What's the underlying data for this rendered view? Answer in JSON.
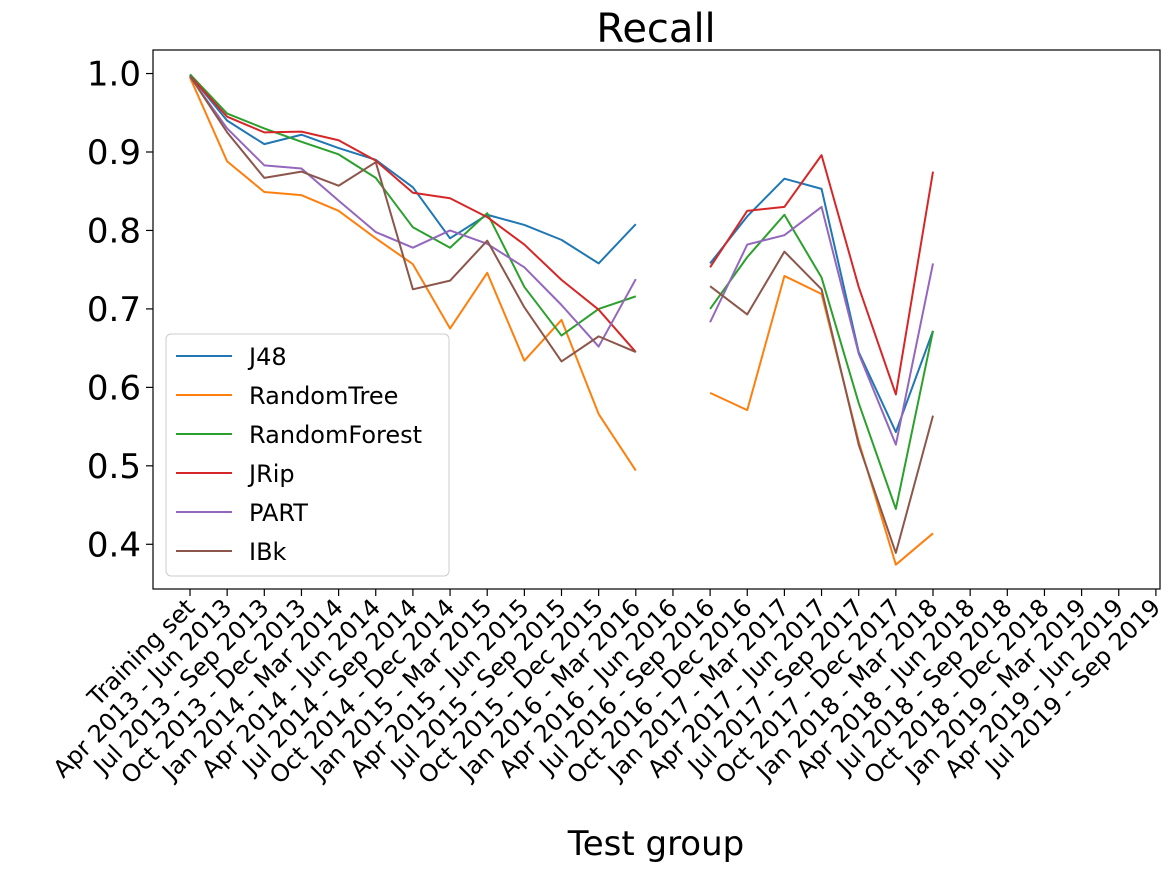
{
  "chart_data": {
    "type": "line",
    "title": "Recall",
    "xlabel": "Test group",
    "ylabel": "",
    "ylim": [
      0.343,
      1.03
    ],
    "yticks": [
      0.4,
      0.5,
      0.6,
      0.7,
      0.8,
      0.9,
      1.0
    ],
    "ytick_labels": [
      "0.4",
      "0.5",
      "0.6",
      "0.7",
      "0.8",
      "0.9",
      "1.0"
    ],
    "grid": false,
    "legend_position": "lower-left",
    "categories": [
      "Training set",
      "Apr 2013 - Jun 2013",
      "Jul 2013 - Sep 2013",
      "Oct 2013 - Dec 2013",
      "Jan 2014 - Mar 2014",
      "Apr 2014 - Jun 2014",
      "Jul 2014 - Sep 2014",
      "Oct 2014 - Dec 2014",
      "Jan 2015 - Mar 2015",
      "Apr 2015 - Jun 2015",
      "Jul 2015 - Sep 2015",
      "Oct 2015 - Dec 2015",
      "Jan 2016 - Mar 2016",
      "Apr 2016 - Jun 2016",
      "Jul 2016 - Sep 2016",
      "Oct 2016 - Dec 2016",
      "Jan 2017 - Mar 2017",
      "Apr 2017 - Jun 2017",
      "Jul 2017 - Sep 2017",
      "Oct 2017 - Dec 2017",
      "Jan 2018 - Mar 2018",
      "Apr 2018 - Jun 2018",
      "Jul 2018 - Sep 2018",
      "Oct 2018 - Dec 2018",
      "Jan 2019 - Mar 2019",
      "Apr 2019 - Jun 2019",
      "Jul 2019 - Sep 2019"
    ],
    "series": [
      {
        "name": "J48",
        "color": "#1f77b4",
        "values": [
          0.998,
          0.94,
          0.91,
          0.922,
          0.905,
          0.89,
          0.855,
          0.79,
          0.82,
          0.807,
          0.788,
          0.758,
          0.808,
          null,
          0.758,
          0.818,
          0.866,
          0.853,
          0.645,
          0.543,
          0.672,
          null,
          null,
          null,
          null,
          null,
          null
        ]
      },
      {
        "name": "RandomTree",
        "color": "#ff7f0e",
        "values": [
          0.995,
          0.888,
          0.849,
          0.845,
          0.825,
          0.79,
          0.757,
          0.675,
          0.746,
          0.634,
          0.686,
          0.566,
          0.494,
          null,
          0.593,
          0.571,
          0.742,
          0.719,
          0.531,
          0.374,
          0.414,
          null,
          null,
          null,
          null,
          null,
          null
        ]
      },
      {
        "name": "RandomForest",
        "color": "#2ca02c",
        "values": [
          0.999,
          0.949,
          0.93,
          0.913,
          0.897,
          0.867,
          0.804,
          0.778,
          0.822,
          0.728,
          0.666,
          0.7,
          0.716,
          null,
          0.7,
          0.766,
          0.82,
          0.74,
          0.58,
          0.445,
          0.672,
          null,
          null,
          null,
          null,
          null,
          null
        ]
      },
      {
        "name": "JRip",
        "color": "#d62728",
        "values": [
          0.997,
          0.945,
          0.925,
          0.926,
          0.915,
          0.889,
          0.848,
          0.841,
          0.817,
          0.782,
          0.737,
          0.699,
          0.645,
          null,
          0.753,
          0.825,
          0.83,
          0.896,
          0.728,
          0.591,
          0.875,
          null,
          null,
          null,
          null,
          null,
          null
        ]
      },
      {
        "name": "PART",
        "color": "#9467bd",
        "values": [
          0.996,
          0.93,
          0.883,
          0.879,
          0.838,
          0.798,
          0.778,
          0.8,
          0.783,
          0.753,
          0.705,
          0.652,
          0.738,
          null,
          0.683,
          0.782,
          0.794,
          0.83,
          0.643,
          0.527,
          0.758,
          null,
          null,
          null,
          null,
          null,
          null
        ]
      },
      {
        "name": "IBk",
        "color": "#8c564b",
        "values": [
          0.997,
          0.925,
          0.867,
          0.875,
          0.857,
          0.887,
          0.725,
          0.736,
          0.787,
          0.702,
          0.633,
          0.665,
          0.645,
          null,
          0.729,
          0.693,
          0.773,
          0.725,
          0.527,
          0.389,
          0.564,
          null,
          null,
          null,
          null,
          null,
          null
        ]
      }
    ]
  }
}
